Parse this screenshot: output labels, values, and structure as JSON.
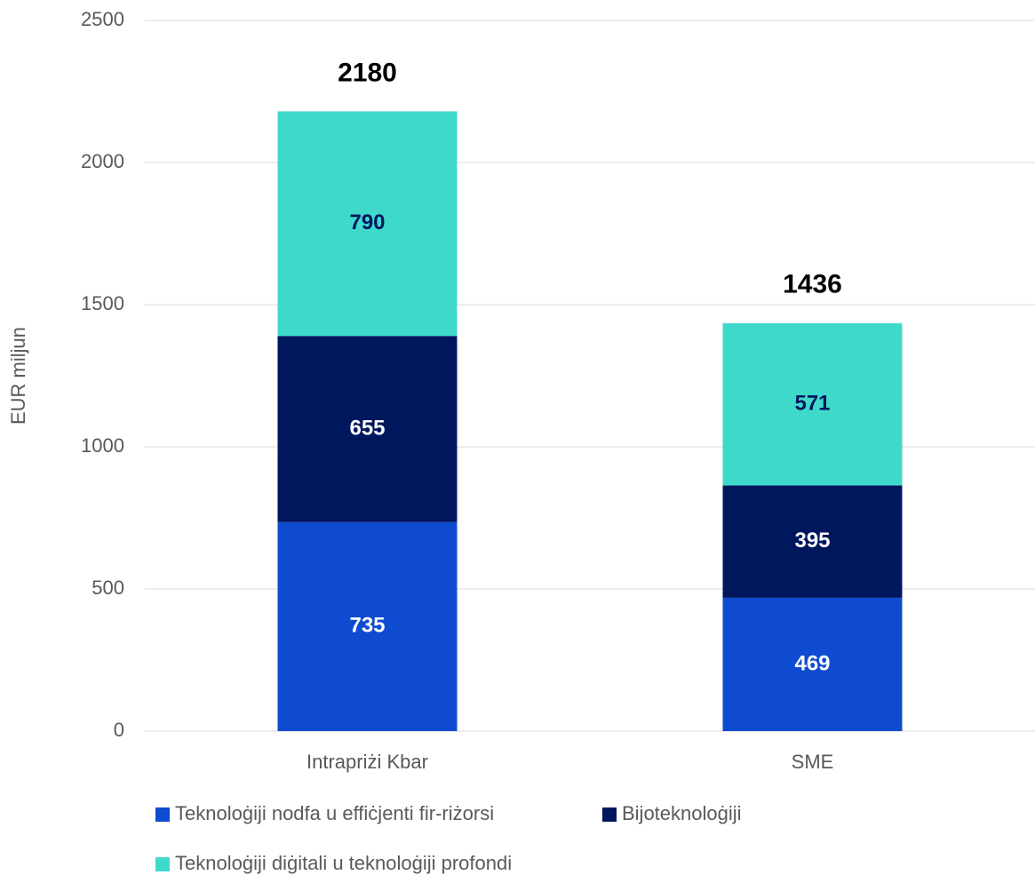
{
  "chart_data": {
    "type": "stacked_bar",
    "y_label": "EUR miljun",
    "categories": [
      "Intrapriżi Kbar",
      "SME"
    ],
    "series": [
      {
        "name": "Teknoloġiji nodfa u effiċjenti fir-riżorsi",
        "color": "#0f4bd0",
        "label_color": "#ffffff",
        "values": [
          735,
          469
        ]
      },
      {
        "name": "Bijoteknoloġiji",
        "color": "#00175e",
        "label_color": "#ffffff",
        "values": [
          655,
          395
        ]
      },
      {
        "name": "Teknoloġiji diġitali u teknoloġiji profondi",
        "color": "#3fd9cb",
        "label_color": "#00175e",
        "values": [
          790,
          571
        ]
      }
    ],
    "totals": [
      2180,
      1436
    ],
    "ylim": [
      0,
      2500
    ],
    "yticks": [
      0,
      500,
      1000,
      1500,
      2000,
      2500
    ],
    "grid": true
  }
}
